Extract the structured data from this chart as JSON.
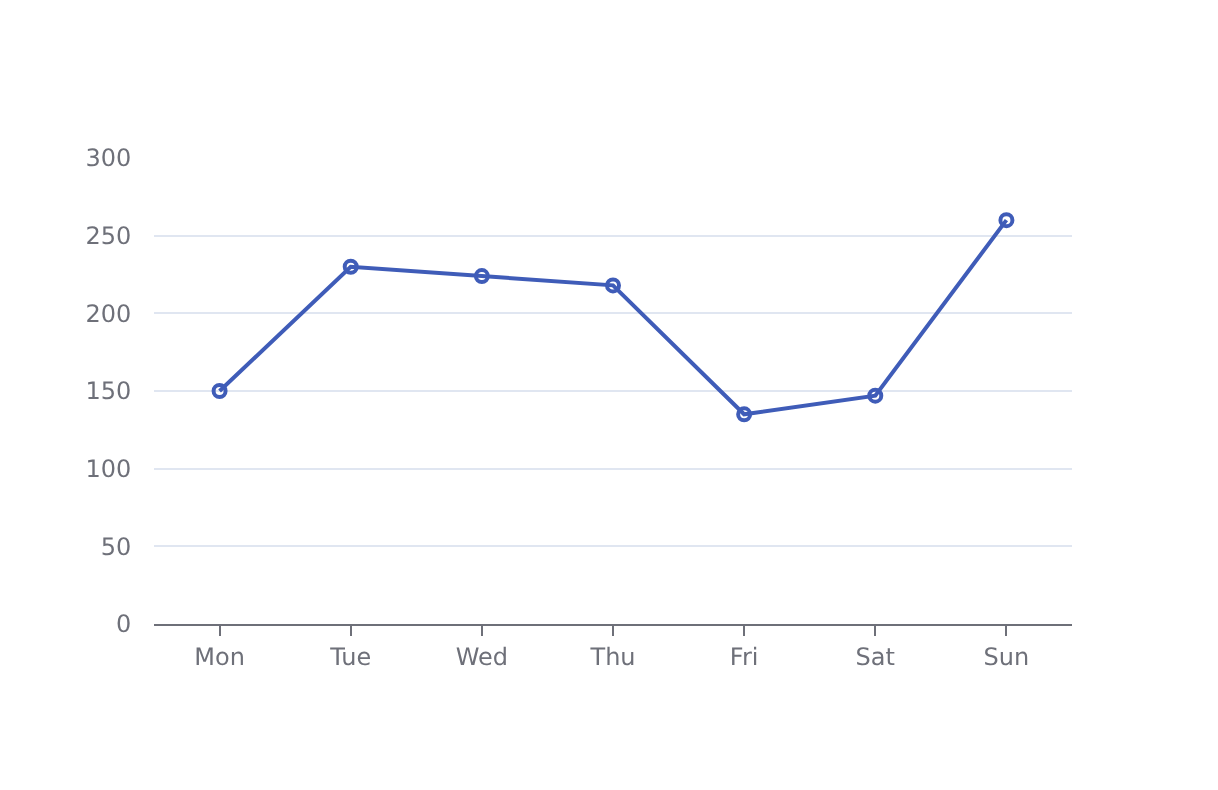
{
  "chart_data": {
    "type": "line",
    "categories": [
      "Mon",
      "Tue",
      "Wed",
      "Thu",
      "Fri",
      "Sat",
      "Sun"
    ],
    "series": [
      {
        "color": "#3f5cb8",
        "values": [
          150,
          230,
          224,
          218,
          135,
          147,
          260
        ]
      }
    ],
    "ylim": [
      0,
      300
    ],
    "yticks": [
      0,
      50,
      100,
      150,
      200,
      250,
      300
    ],
    "grid": "y",
    "marker": "circle",
    "line_style": "solid",
    "legend": false
  }
}
